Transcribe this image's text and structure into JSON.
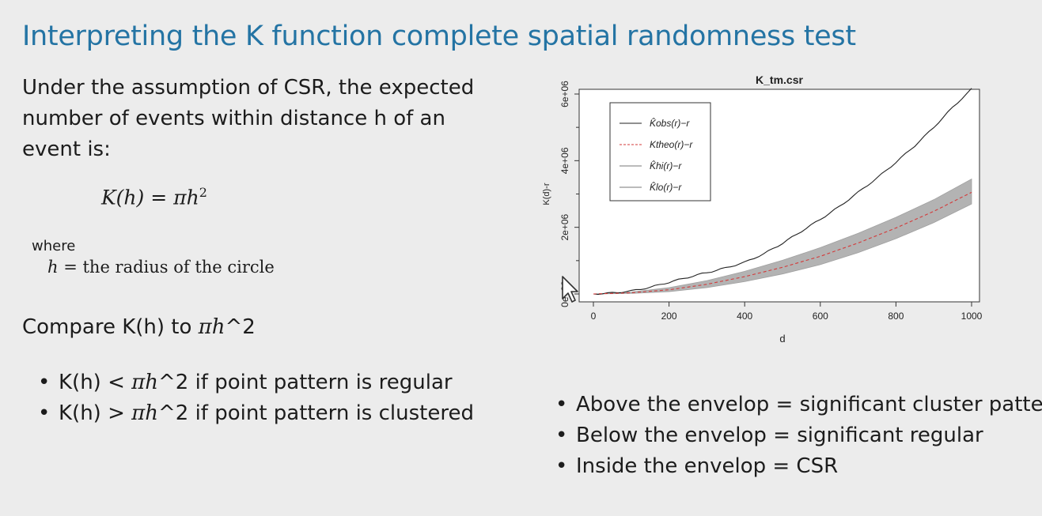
{
  "slide": {
    "title": "Interpreting the K function complete spatial randomness test",
    "intro": "Under the assumption of CSR, the expected number of events within distance h of an event is:",
    "formula": {
      "lhs": "K(h)",
      "eq": "=",
      "rhs_pi": "π",
      "rhs_h": "h",
      "rhs_exp": "2"
    },
    "where_label": "where",
    "where_def": {
      "var": "h",
      "text": "= the radius of the circle"
    },
    "compare": {
      "prefix": "Compare K(h) to ",
      "pi": "πh",
      "suffix": "^2"
    },
    "left_bullets": [
      {
        "prefix": "K(h) < ",
        "pi": "πh",
        "suffix": "^2 if point pattern is regular"
      },
      {
        "prefix": "K(h) > ",
        "pi": "πh",
        "suffix": "^2 if point pattern is clustered"
      }
    ],
    "right_bullets": [
      "Above the envelop = significant cluster pattern",
      "Below the envelop = significant regular",
      "Inside the envelop = CSR"
    ]
  },
  "chart_data": {
    "type": "line",
    "title": "K_tm.csr",
    "xlabel": "d",
    "ylabel": "K(d)-r",
    "xlim": [
      0,
      1000
    ],
    "ylim": [
      0,
      6000000
    ],
    "xticks": [
      "0",
      "200",
      "400",
      "600",
      "800",
      "1000"
    ],
    "yticks": [
      "0e+00",
      "2e+06",
      "4e+06",
      "6e+06"
    ],
    "legend_position": "top-left",
    "series": [
      {
        "name": "K̂obs(r)−r",
        "style": "solid",
        "color": "#222222",
        "x": [
          0,
          50,
          100,
          150,
          200,
          250,
          300,
          350,
          400,
          450,
          500,
          550,
          600,
          650,
          700,
          750,
          800,
          850,
          900,
          950,
          1000
        ],
        "y": [
          0,
          30000,
          90000,
          200000,
          350000,
          500000,
          640000,
          780000,
          950000,
          1200000,
          1520000,
          1880000,
          2240000,
          2620000,
          3050000,
          3480000,
          3950000,
          4450000,
          5000000,
          5600000,
          6150000
        ]
      },
      {
        "name": "Ktheo(r)−r",
        "style": "dashed",
        "color": "#d33a3a",
        "x": [
          0,
          100,
          200,
          300,
          400,
          500,
          600,
          700,
          800,
          900,
          1000
        ],
        "y": [
          0,
          35000,
          125000,
          290000,
          520000,
          800000,
          1130000,
          1530000,
          1980000,
          2480000,
          3050000
        ]
      },
      {
        "name": "K̂hi(r)−r",
        "style": "band-upper",
        "color": "#aaaaaa",
        "x": [
          0,
          100,
          200,
          300,
          400,
          500,
          600,
          700,
          800,
          900,
          1000
        ],
        "y": [
          0,
          60000,
          190000,
          400000,
          680000,
          1010000,
          1390000,
          1820000,
          2300000,
          2830000,
          3450000
        ]
      },
      {
        "name": "K̂lo(r)−r",
        "style": "band-lower",
        "color": "#aaaaaa",
        "x": [
          0,
          100,
          200,
          300,
          400,
          500,
          600,
          700,
          800,
          900,
          1000
        ],
        "y": [
          0,
          15000,
          70000,
          190000,
          370000,
          600000,
          880000,
          1240000,
          1660000,
          2140000,
          2700000
        ]
      }
    ]
  }
}
